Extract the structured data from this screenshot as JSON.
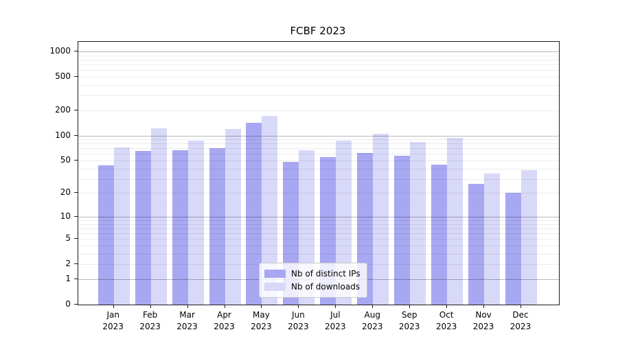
{
  "colors": {
    "distinct_ips": "#a7a7f2",
    "downloads": "#d8d8f8",
    "grid_major": "rgba(0,0,0,0.28)",
    "grid_minor": "rgba(0,0,0,0.08)",
    "axis": "#1a1a1a",
    "legend_border": "#cccccc"
  },
  "chart_data": {
    "type": "bar",
    "title": "FCBF 2023",
    "categories": [
      "Jan",
      "Feb",
      "Mar",
      "Apr",
      "May",
      "Jun",
      "Jul",
      "Aug",
      "Sep",
      "Oct",
      "Nov",
      "Dec"
    ],
    "year": "2023",
    "series": [
      {
        "name": "Nb of distinct IPs",
        "key": "distinct_ips",
        "values": [
          44,
          65,
          67,
          70,
          142,
          48,
          55,
          62,
          57,
          45,
          26,
          20
        ]
      },
      {
        "name": "Nb of downloads",
        "key": "downloads",
        "values": [
          72,
          123,
          87,
          119,
          170,
          66,
          87,
          104,
          84,
          94,
          35,
          38
        ]
      }
    ],
    "xlabel": "",
    "ylabel": "",
    "yscale": "log1p",
    "y_ticks": [
      0,
      1,
      2,
      5,
      10,
      20,
      50,
      100,
      200,
      500,
      1000
    ],
    "ylim": [
      0,
      1300
    ],
    "grid": true,
    "grid_major_values": [
      1,
      10,
      100,
      1000
    ],
    "legend_position": "lower center"
  }
}
